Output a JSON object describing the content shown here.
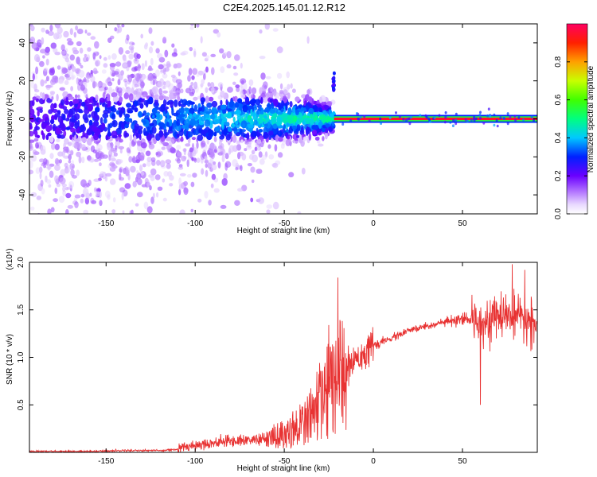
{
  "title": "C2E4.2025.145.01.12.R12",
  "colors": {
    "snr_line": "#e83333",
    "axis": "#000000"
  },
  "chart_data": [
    {
      "type": "heatmap",
      "title": "C2E4.2025.145.01.12.R12",
      "xlabel": "Height of straight line (km)",
      "ylabel": "Frequency (Hz)",
      "xlim": [
        -193,
        92
      ],
      "ylim": [
        -50,
        50
      ],
      "x_ticks": [
        -150,
        -100,
        -50,
        0,
        50
      ],
      "y_ticks": [
        -40,
        -20,
        0,
        20,
        40
      ],
      "colorbar": {
        "label": "Normalized spectral amplitude",
        "range": [
          0,
          1
        ],
        "ticks": [
          "0.0",
          "0.2",
          "0.4",
          "0.6",
          "0.8"
        ],
        "colormap": "rainbow (white-violet-blue-cyan-green-yellow-red)"
      },
      "features": {
        "strong_carrier_line": {
          "x_from": -22,
          "x_to": 92,
          "frequency": 0,
          "amplitude": 0.95
        },
        "spread_band": {
          "x_from": -193,
          "x_to": -22,
          "frequency_center": 0,
          "amplitude": "0.2-0.5"
        },
        "feature_at_x_-22": {
          "x": -22,
          "frequency_range": [
            15,
            25
          ]
        }
      }
    },
    {
      "type": "line",
      "xlabel": "Height of straight line (km)",
      "ylabel": "SNR (10 * v/v)",
      "y_multiplier_label": "(x10⁴)",
      "xlim": [
        -193,
        92
      ],
      "ylim": [
        0,
        2.0
      ],
      "x_ticks": [
        -150,
        -100,
        -50,
        0,
        50
      ],
      "y_ticks": [
        "0.5",
        "1.0",
        "1.5",
        "2.0"
      ],
      "series": [
        {
          "x": [
            -193,
            -180,
            -160,
            -140,
            -120,
            -110,
            -105,
            -100,
            -90,
            -80,
            -70,
            -60,
            -50,
            -45,
            -40,
            -35,
            -30,
            -25,
            -20,
            -15,
            -10,
            -5,
            0,
            10,
            20,
            30,
            40,
            50,
            55,
            60,
            65,
            70,
            75,
            80,
            85,
            92
          ],
          "y": [
            0.01,
            0.01,
            0.01,
            0.02,
            0.02,
            0.03,
            0.06,
            0.08,
            0.1,
            0.12,
            0.13,
            0.14,
            0.2,
            0.25,
            0.3,
            0.4,
            0.55,
            0.65,
            0.75,
            0.85,
            1.0,
            1.05,
            1.12,
            1.2,
            1.28,
            1.33,
            1.37,
            1.39,
            1.4,
            1.41,
            1.38,
            1.42,
            1.45,
            1.4,
            1.38,
            1.35
          ]
        }
      ],
      "notable_spikes": [
        {
          "x": -20,
          "y": 1.84
        },
        {
          "x": -25,
          "y": 1.34
        },
        {
          "x": 60,
          "y": 0.5
        },
        {
          "x": 78,
          "y": 1.98
        },
        {
          "x": 85,
          "y": 1.92
        }
      ]
    }
  ]
}
